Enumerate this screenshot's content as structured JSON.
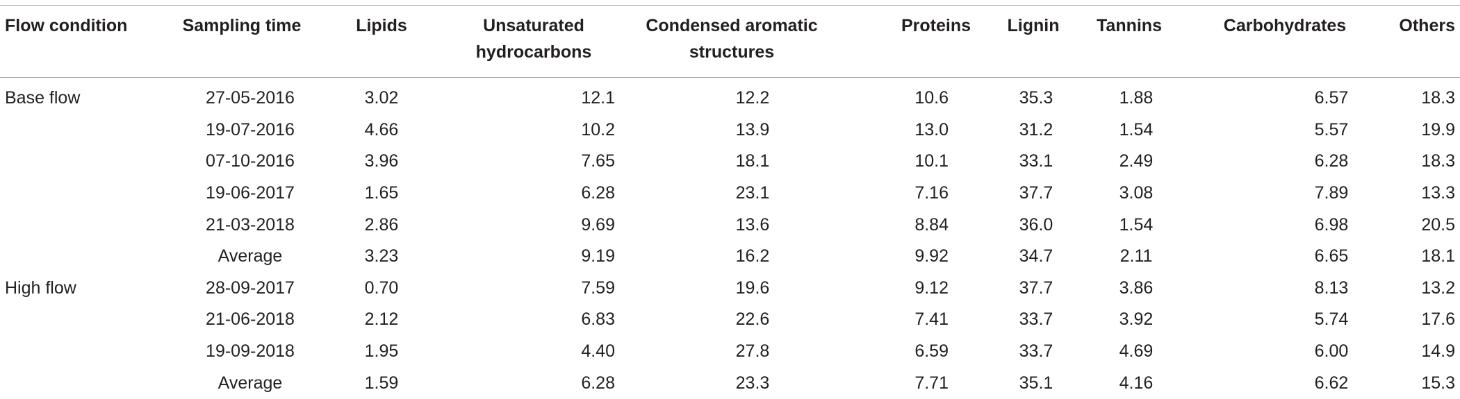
{
  "table": {
    "headers": [
      "Flow condition",
      "Sampling time",
      "Lipids",
      "Unsaturated hydrocarbons",
      "Condensed aromatic structures",
      "Proteins",
      "Lignin",
      "Tannins",
      "Carbohydrates",
      "Others"
    ],
    "groups": [
      {
        "label": "Base flow",
        "rows": [
          [
            "27-05-2016",
            "3.02",
            "12.1",
            "12.2",
            "10.6",
            "35.3",
            "1.88",
            "6.57",
            "18.3"
          ],
          [
            "19-07-2016",
            "4.66",
            "10.2",
            "13.9",
            "13.0",
            "31.2",
            "1.54",
            "5.57",
            "19.9"
          ],
          [
            "07-10-2016",
            "3.96",
            "7.65",
            "18.1",
            "10.1",
            "33.1",
            "2.49",
            "6.28",
            "18.3"
          ],
          [
            "19-06-2017",
            "1.65",
            "6.28",
            "23.1",
            "7.16",
            "37.7",
            "3.08",
            "7.89",
            "13.3"
          ],
          [
            "21-03-2018",
            "2.86",
            "9.69",
            "13.6",
            "8.84",
            "36.0",
            "1.54",
            "6.98",
            "20.5"
          ],
          [
            "Average",
            "3.23",
            "9.19",
            "16.2",
            "9.92",
            "34.7",
            "2.11",
            "6.65",
            "18.1"
          ]
        ]
      },
      {
        "label": "High flow",
        "rows": [
          [
            "28-09-2017",
            "0.70",
            "7.59",
            "19.6",
            "9.12",
            "37.7",
            "3.86",
            "8.13",
            "13.2"
          ],
          [
            "21-06-2018",
            "2.12",
            "6.83",
            "22.6",
            "7.41",
            "33.7",
            "3.92",
            "5.74",
            "17.6"
          ],
          [
            "19-09-2018",
            "1.95",
            "4.40",
            "27.8",
            "6.59",
            "33.7",
            "4.69",
            "6.00",
            "14.9"
          ],
          [
            "Average",
            "1.59",
            "6.28",
            "23.3",
            "7.71",
            "35.1",
            "4.16",
            "6.62",
            "15.3"
          ]
        ]
      }
    ]
  }
}
